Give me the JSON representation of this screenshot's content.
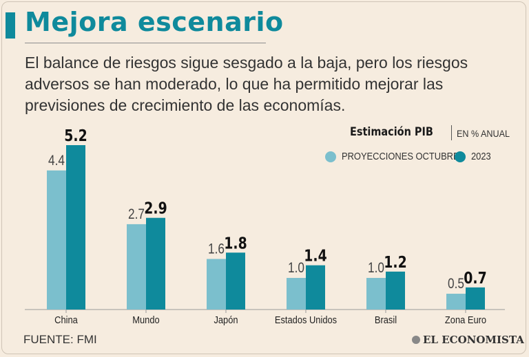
{
  "header": {
    "title": "Mejora escenario",
    "subtitle": "El balance de riesgos sigue sesgado a la baja, pero los riesgos adversos se han moderado, lo que ha permitido mejorar las previsiones de crecimiento de las economías."
  },
  "legend": {
    "title": "Estimación PIB",
    "unit": "EN % ANUAL",
    "series_a": "PROYECCIONES OCTUBRE",
    "series_b": "2023"
  },
  "colors": {
    "accent": "#0f8a9c",
    "series_a": "#7bbfcd",
    "series_b": "#0f8a9c"
  },
  "footer": {
    "source": "FUENTE: FMI",
    "brand": "EL ECONOMISTA"
  },
  "chart_data": {
    "type": "bar",
    "title": "Estimación PIB",
    "ylabel": "EN % ANUAL",
    "categories": [
      "China",
      "Mundo",
      "Japón",
      "Estados Unidos",
      "Brasil",
      "Zona Euro"
    ],
    "series": [
      {
        "name": "PROYECCIONES OCTUBRE",
        "values": [
          4.4,
          2.7,
          1.6,
          1.0,
          1.0,
          0.5
        ],
        "labels": [
          "4.4",
          "2.7",
          "1.6",
          "1.0",
          "1.0",
          "0.5"
        ]
      },
      {
        "name": "2023",
        "values": [
          5.2,
          2.9,
          1.8,
          1.4,
          1.2,
          0.7
        ],
        "labels": [
          "5.2",
          "2.9",
          "1.8",
          "1.4",
          "1.2",
          "0.7"
        ]
      }
    ],
    "ylim": [
      0,
      5.2
    ],
    "grid": false
  }
}
